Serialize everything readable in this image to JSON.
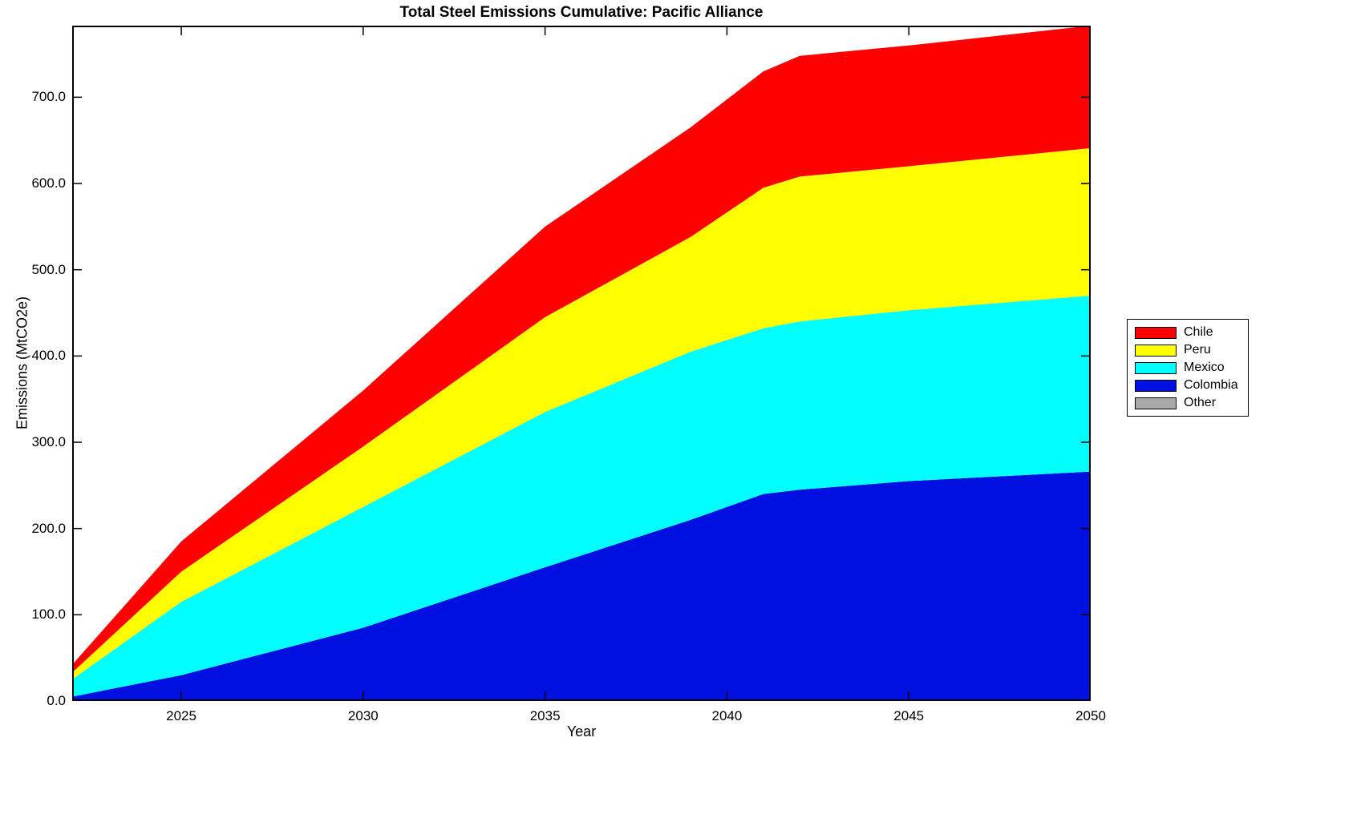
{
  "chart": {
    "title": "Total Steel Emissions Cumulative: Pacific Alliance",
    "xlabel": "Year",
    "ylabel": "Emissions (MtCO2e)"
  },
  "legend": {
    "items": [
      {
        "label": "Chile",
        "color": "#ff0000"
      },
      {
        "label": "Peru",
        "color": "#ffff00"
      },
      {
        "label": "Mexico",
        "color": "#00ffff"
      },
      {
        "label": "Colombia",
        "color": "#0010e0"
      },
      {
        "label": "Other",
        "color": "#a8a8a8"
      }
    ]
  },
  "chart_data": {
    "type": "area",
    "stacked": true,
    "title": "Total Steel Emissions Cumulative: Pacific Alliance",
    "xlabel": "Year",
    "ylabel": "Emissions (MtCO2e)",
    "x": [
      2022,
      2025,
      2030,
      2035,
      2039,
      2041,
      2042,
      2045,
      2050
    ],
    "series": [
      {
        "name": "Colombia",
        "color": "#0010e0",
        "values": [
          5,
          30,
          85,
          155,
          210,
          240,
          245,
          255,
          266
        ]
      },
      {
        "name": "Mexico",
        "color": "#00ffff",
        "values": [
          20,
          85,
          140,
          180,
          195,
          192,
          195,
          198,
          204
        ]
      },
      {
        "name": "Peru",
        "color": "#ffff00",
        "values": [
          8,
          35,
          70,
          110,
          133,
          163,
          168,
          167,
          171
        ]
      },
      {
        "name": "Chile",
        "color": "#ff0000",
        "values": [
          9,
          35,
          65,
          105,
          127,
          135,
          140,
          140,
          142
        ]
      },
      {
        "name": "Other",
        "color": "#a8a8a8",
        "values": [
          0,
          0,
          0,
          0,
          0,
          0,
          0,
          0,
          0
        ]
      }
    ],
    "cumulative_totals": [
      42,
      185,
      360,
      550,
      665,
      730,
      748,
      760,
      783
    ],
    "xlim": [
      2022,
      2050
    ],
    "ylim": [
      0,
      783
    ],
    "x_ticks": [
      2025,
      2030,
      2035,
      2040,
      2045,
      2050
    ],
    "x_tick_labels": [
      "2025",
      "2030",
      "2035",
      "2040",
      "2045",
      "2050"
    ],
    "y_ticks": [
      0,
      100,
      200,
      300,
      400,
      500,
      600,
      700
    ],
    "y_tick_labels": [
      "0.0",
      "100.0",
      "200.0",
      "300.0",
      "400.0",
      "500.0",
      "600.0",
      "700.0"
    ],
    "grid": false,
    "legend_position": "right-outside"
  }
}
